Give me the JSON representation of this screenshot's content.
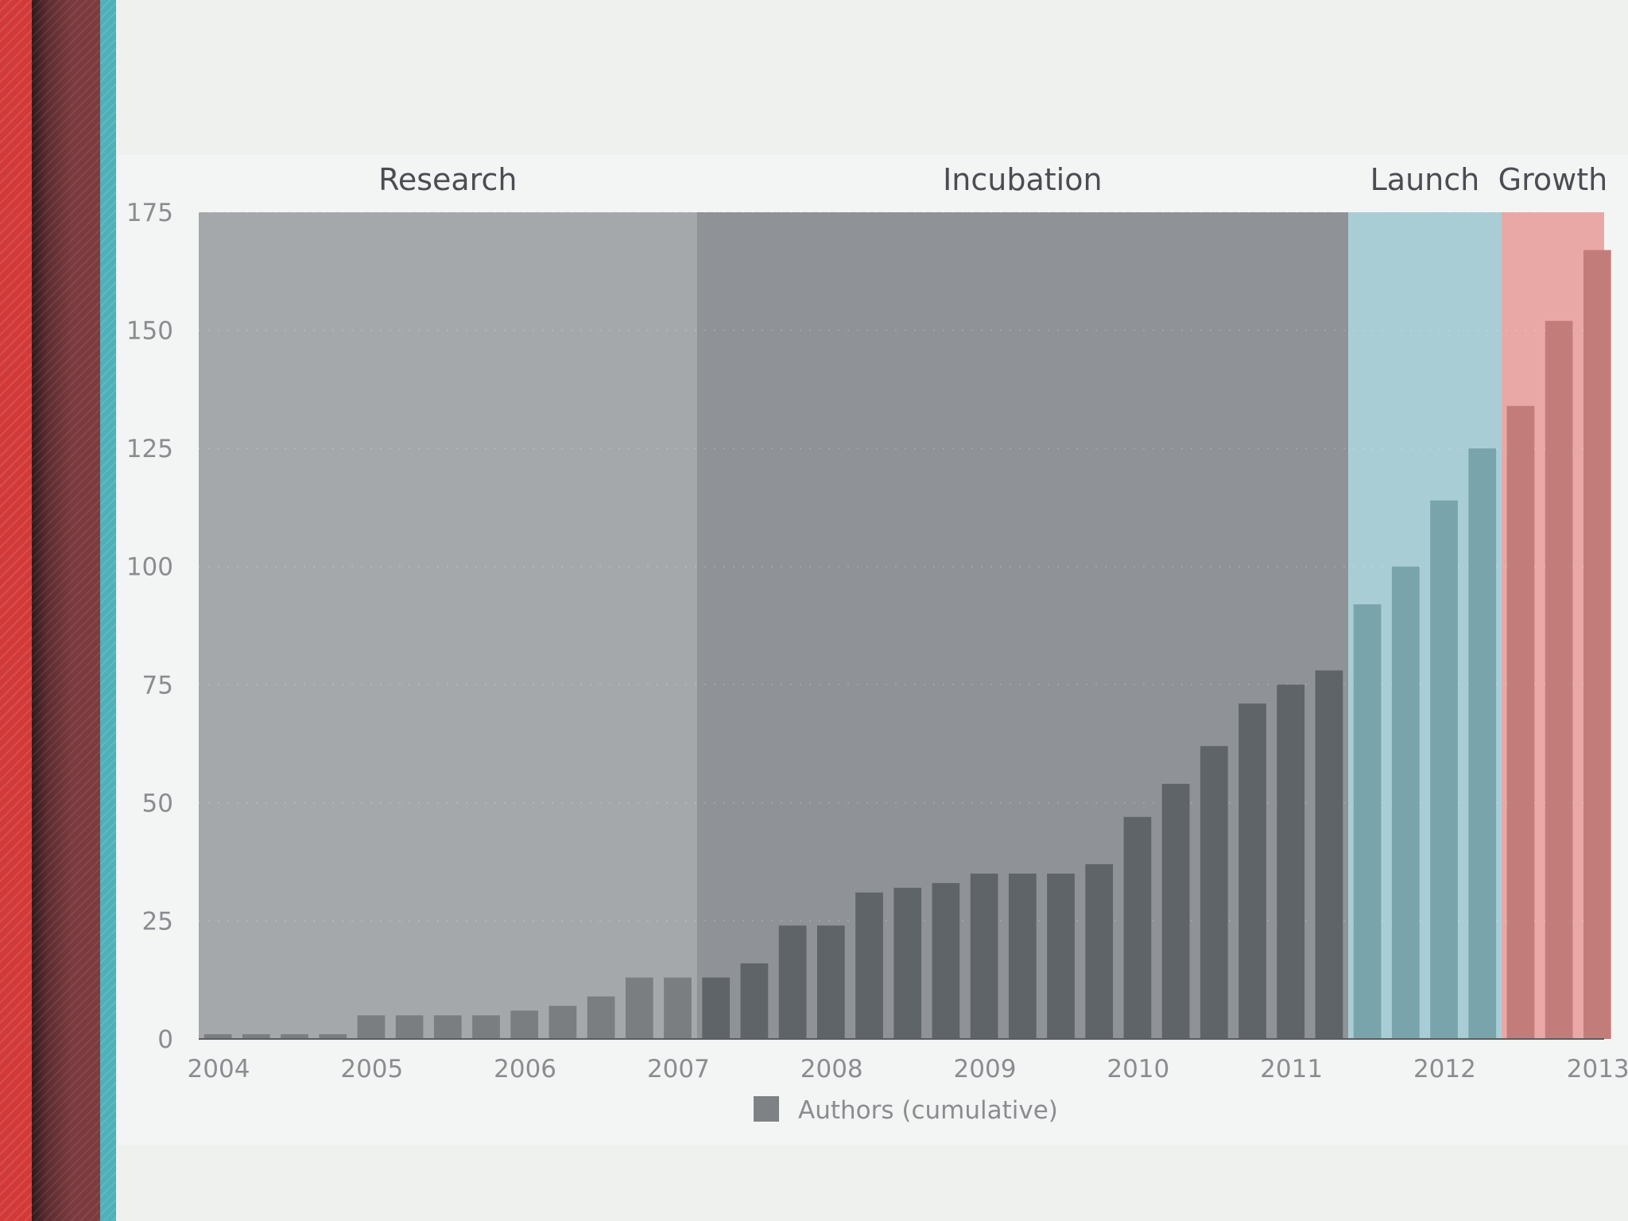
{
  "chart_data": {
    "type": "bar",
    "title": "",
    "xlabel": "",
    "ylabel": "",
    "ylim": [
      0,
      175
    ],
    "yticks": [
      0,
      25,
      50,
      75,
      100,
      125,
      150,
      175
    ],
    "x_range": [
      2004,
      2013.17
    ],
    "xticks": [
      2004,
      2005,
      2006,
      2007,
      2008,
      2009,
      2010,
      2011,
      2012,
      2013
    ],
    "grid": true,
    "legend": {
      "label": "Authors (cumulative)",
      "position": "bottom-center",
      "color": "#7f8284"
    },
    "phases": [
      {
        "name": "Research",
        "start": 2004.0,
        "end": 2007.25,
        "bg": "#a5a8aa",
        "bar": "#7a7e80"
      },
      {
        "name": "Incubation",
        "start": 2007.25,
        "end": 2011.5,
        "bg": "#8f9296",
        "bar": "#5f6468"
      },
      {
        "name": "Launch",
        "start": 2011.5,
        "end": 2012.5,
        "bg": "#a8cdd4",
        "bar": "#7aa4ab"
      },
      {
        "name": "Growth",
        "start": 2012.5,
        "end": 2013.17,
        "bg": "#e9a8a5",
        "bar": "#c27d7a"
      }
    ],
    "series": [
      {
        "name": "Authors (cumulative)",
        "x": [
          2004.0,
          2004.25,
          2004.5,
          2004.75,
          2005.0,
          2005.25,
          2005.5,
          2005.75,
          2006.0,
          2006.25,
          2006.5,
          2006.75,
          2007.0,
          2007.25,
          2007.5,
          2007.75,
          2008.0,
          2008.25,
          2008.5,
          2008.75,
          2009.0,
          2009.25,
          2009.5,
          2009.75,
          2010.0,
          2010.25,
          2010.5,
          2010.75,
          2011.0,
          2011.25,
          2011.5,
          2011.75,
          2012.0,
          2012.25,
          2012.5,
          2012.75,
          2013.0
        ],
        "values": [
          1,
          1,
          1,
          1,
          5,
          5,
          5,
          5,
          6,
          7,
          9,
          13,
          13,
          13,
          16,
          24,
          24,
          31,
          32,
          33,
          35,
          35,
          35,
          37,
          47,
          54,
          62,
          71,
          75,
          78,
          92,
          100,
          114,
          125,
          134,
          152,
          167
        ]
      }
    ]
  }
}
